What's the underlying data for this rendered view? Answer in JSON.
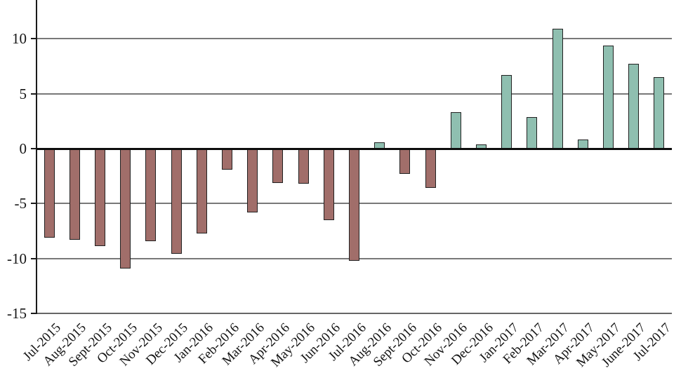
{
  "chart_data": {
    "type": "bar",
    "title": "",
    "xlabel": "",
    "ylabel": "",
    "categories": [
      "Jul-2015",
      "Aug-2015",
      "Sept-2015",
      "Oct-2015",
      "Nov-2015",
      "Dec-2015",
      "Jan-2016",
      "Feb-2016",
      "Mar-2016",
      "Apr-2016",
      "May-2016",
      "Jun-2016",
      "Jul-2016",
      "Aug-2016",
      "Sept-2016",
      "Oct-2016",
      "Nov-2016",
      "Dec-2016",
      "Jan-2017",
      "Feb-2017",
      "Mar-2017",
      "Apr-2017",
      "May-2017",
      "June-2017",
      "Jul-2017"
    ],
    "values": [
      -8.1,
      -8.3,
      -8.9,
      -10.9,
      -8.4,
      -9.6,
      -7.7,
      -1.9,
      -5.8,
      -3.1,
      -3.2,
      -6.5,
      -10.2,
      0.6,
      -2.3,
      -3.6,
      3.3,
      0.4,
      6.7,
      2.9,
      10.9,
      0.8,
      9.4,
      7.7,
      6.5
    ],
    "yticks": [
      10,
      5,
      0,
      -5,
      -10,
      -15
    ],
    "ylim": [
      -15,
      13.5
    ],
    "grid": true,
    "legend": false,
    "colors": {
      "positive_bar": "#8FBFB0",
      "negative_bar": "#A16E6A",
      "bar_border": "#212121",
      "gridline": "#787878",
      "zero_line": "#0d0d0d",
      "axis_line": "#1a1a1a",
      "bottom_line": "#666666",
      "text": "#141414",
      "background": "#FFFFFF"
    }
  }
}
